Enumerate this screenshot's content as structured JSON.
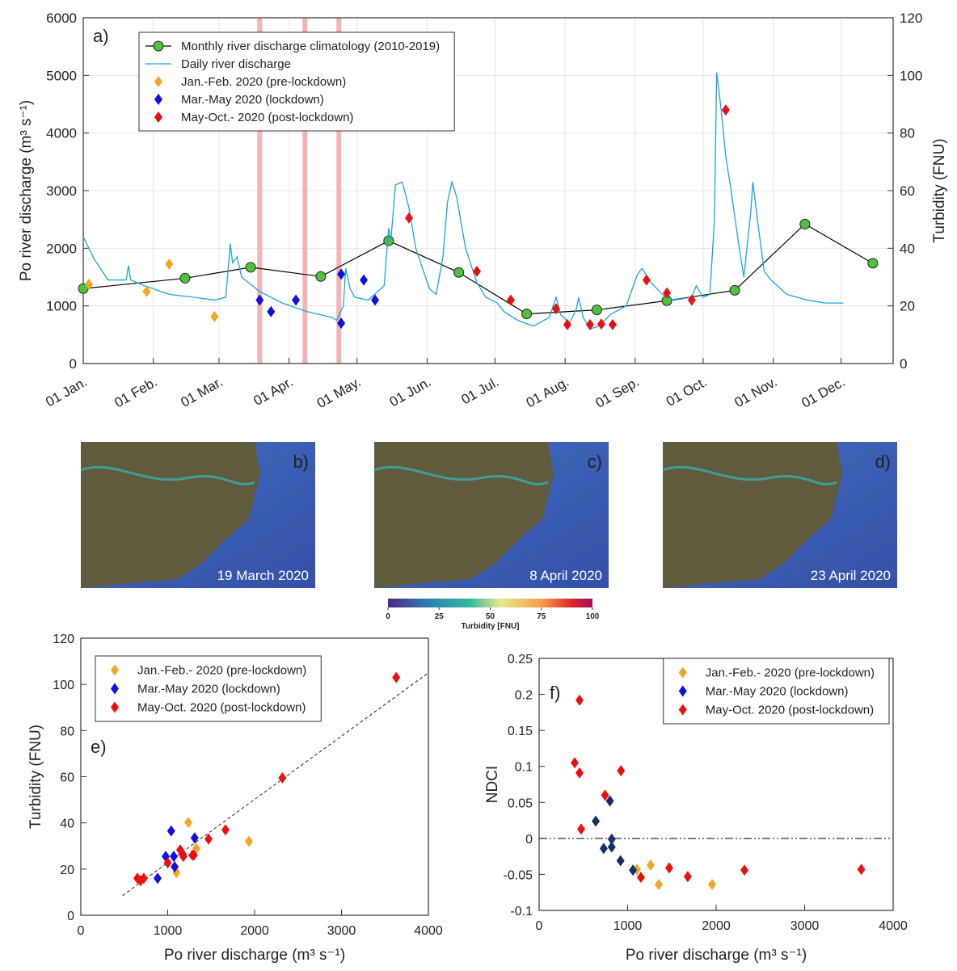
{
  "chart_data": [
    {
      "type": "line",
      "panel_label": "a)",
      "y_label": "Po river discharge (m³ s⁻¹)",
      "y2_label": "Turbidity (FNU)",
      "xlim": [
        0,
        358
      ],
      "xticks": [
        {
          "value": 0,
          "label": "01 Jan."
        },
        {
          "value": 31,
          "label": "01 Feb."
        },
        {
          "value": 60,
          "label": "01 Mar."
        },
        {
          "value": 91,
          "label": "01 Apr."
        },
        {
          "value": 121,
          "label": "01 May."
        },
        {
          "value": 152,
          "label": "01 Jun."
        },
        {
          "value": 182,
          "label": "01 Jul."
        },
        {
          "value": 213,
          "label": "01 Aug."
        },
        {
          "value": 244,
          "label": "01 Sep."
        },
        {
          "value": 274,
          "label": "01 Oct."
        },
        {
          "value": 305,
          "label": "01 Nov."
        },
        {
          "value": 335,
          "label": "01 Dec."
        }
      ],
      "ylim": [
        0,
        6000
      ],
      "yticks": [
        0,
        1000,
        2000,
        3000,
        4000,
        5000,
        6000
      ],
      "y2lim": [
        0,
        120
      ],
      "y2ticks": [
        0,
        20,
        40,
        60,
        80,
        100,
        120
      ],
      "grid": true,
      "legend": "upper left",
      "highlights": [
        78,
        98,
        113
      ],
      "series": [
        {
          "name": "Monthly river discharge climatology (2010-2019)",
          "style": "line-marker",
          "color": "#000000",
          "marker_color": "#4cc33b",
          "x": [
            0,
            45,
            74,
            105,
            135,
            166,
            196,
            227,
            258,
            288,
            319,
            349
          ],
          "values": [
            1300,
            1480,
            1670,
            1510,
            2130,
            1580,
            860,
            930,
            1090,
            1270,
            2420,
            1740
          ]
        },
        {
          "name": "Daily river discharge",
          "style": "line",
          "color": "#1aa3e0",
          "x": [
            0,
            5,
            11,
            19,
            20,
            21,
            27,
            38,
            49,
            58,
            63,
            65,
            66,
            68,
            70,
            78,
            88,
            99,
            110,
            112,
            115,
            116,
            118,
            120,
            126,
            133,
            135,
            136,
            138,
            141,
            144,
            147,
            153,
            156,
            159,
            161,
            163,
            165,
            169,
            174,
            178,
            183,
            186,
            192,
            199,
            206,
            209,
            211,
            215,
            218,
            219,
            221,
            224,
            228,
            233,
            240,
            245,
            247,
            251,
            256,
            261,
            269,
            271,
            274,
            277,
            279,
            280,
            282,
            284,
            286,
            290,
            292,
            295,
            296,
            298,
            301,
            304,
            311,
            320,
            328,
            336
          ],
          "values": [
            2200,
            1800,
            1450,
            1450,
            1700,
            1450,
            1350,
            1200,
            1150,
            1100,
            1150,
            2080,
            1750,
            1850,
            1500,
            1250,
            1050,
            900,
            800,
            750,
            1000,
            1650,
            1300,
            1150,
            1100,
            1350,
            2350,
            2150,
            3100,
            3150,
            2700,
            2000,
            1300,
            1200,
            1850,
            2800,
            3150,
            2900,
            2000,
            1400,
            1150,
            1050,
            900,
            750,
            650,
            800,
            1150,
            850,
            700,
            950,
            1150,
            800,
            600,
            650,
            850,
            1000,
            1550,
            1650,
            1400,
            1200,
            1100,
            1150,
            1350,
            1150,
            1200,
            2500,
            5050,
            4400,
            3600,
            3100,
            2000,
            1500,
            2600,
            3150,
            2500,
            1600,
            1450,
            1200,
            1100,
            1050,
            1050
          ]
        },
        {
          "name": "Jan.-Feb. 2020 (pre-lockdown)",
          "style": "diamond",
          "axis": "y2",
          "color": "#f0a820",
          "x": [
            2.5,
            28,
            38,
            58
          ],
          "values": [
            27.5,
            25,
            34.5,
            16.3
          ]
        },
        {
          "name": "Mar.-May 2020 (lockdown)",
          "style": "diamond",
          "axis": "y2",
          "color": "#1010e0",
          "x": [
            78,
            83,
            94,
            114,
            114,
            124,
            129
          ],
          "values": [
            22,
            18,
            22,
            31,
            14,
            29,
            22
          ]
        },
        {
          "name": "May-Oct.- 2020 (post-lockdown)",
          "style": "diamond",
          "axis": "y2",
          "color": "#e81010",
          "x": [
            144,
            174,
            189,
            209,
            214,
            224,
            229,
            234,
            249,
            258,
            269,
            284
          ],
          "values": [
            50.5,
            32,
            22,
            19,
            13.5,
            13.5,
            13.7,
            13.5,
            29,
            24.5,
            22,
            88
          ]
        }
      ]
    },
    {
      "type": "scatter",
      "panel_label": "e)",
      "x_label": "Po river discharge (m³ s⁻¹)",
      "y_label": "Turbidity (FNU)",
      "xlim": [
        0,
        4000
      ],
      "xticks": [
        0,
        1000,
        2000,
        3000,
        4000
      ],
      "ylim": [
        0,
        120
      ],
      "yticks": [
        0,
        20,
        40,
        60,
        80,
        100,
        120
      ],
      "grid": false,
      "legend": "upper left",
      "fit_line": {
        "x": [
          480,
          4000
        ],
        "values": [
          8.5,
          105
        ]
      },
      "series": [
        {
          "name": "Jan.-Feb.- 2020 (pre-lockdown)",
          "color": "#f0a820",
          "x": [
            1237,
            1935,
            1330,
            1100
          ],
          "values": [
            40.2,
            32,
            29,
            18.5
          ]
        },
        {
          "name": "Mar.-May 2020 (lockdown)",
          "color": "#1010e0",
          "x": [
            1040,
            1310,
            977,
            1070,
            1080,
            884
          ],
          "values": [
            36.5,
            33.5,
            25.5,
            25.5,
            21,
            16
          ]
        },
        {
          "name": "May-Oct. 2020 (post-lockdown)",
          "color": "#e81010",
          "x": [
            3630,
            2320,
            1665,
            1470,
            1300,
            1180,
            1172,
            1144,
            1284,
            1000,
            651,
            725,
            688
          ],
          "values": [
            103,
            59.5,
            37,
            33,
            26,
            25.5,
            26.5,
            28.3,
            26,
            22.7,
            16,
            16,
            15
          ]
        }
      ]
    },
    {
      "type": "scatter",
      "panel_label": "f)",
      "x_label": "Po river discharge (m³ s⁻¹)",
      "y_label": "NDCI",
      "xlim": [
        0,
        4000
      ],
      "xticks": [
        0,
        1000,
        2000,
        3000,
        4000
      ],
      "ylim": [
        -0.1,
        0.25
      ],
      "yticks": [
        -0.1,
        -0.05,
        0,
        0.05,
        0.1,
        0.15,
        0.2,
        0.25
      ],
      "grid": false,
      "legend": "upper right",
      "hline": 0,
      "series": [
        {
          "name": "Jan.-Feb.- 2020 (pre-lockdown)",
          "color": "#f0a820",
          "x": [
            1105,
            1260,
            1352,
            1954
          ],
          "values": [
            -0.043,
            -0.037,
            -0.064,
            -0.064
          ]
        },
        {
          "name": "Mar.-May 2020 (lockdown)",
          "color": "#1010e0",
          "marker_color": "#14306a",
          "x": [
            640,
            800,
            730,
            820,
            820,
            920,
            1060
          ],
          "values": [
            0.024,
            0.052,
            -0.014,
            -0.012,
            -0.001,
            -0.031,
            -0.044
          ]
        },
        {
          "name": "May-Oct. 2020 (post-lockdown)",
          "color": "#e81010",
          "x": [
            402,
            457,
            457,
            475,
            745,
            925,
            1150,
            1470,
            1680,
            2320,
            3640
          ],
          "values": [
            0.105,
            0.192,
            0.091,
            0.013,
            0.06,
            0.094,
            -0.054,
            -0.041,
            -0.053,
            -0.044,
            -0.043
          ]
        }
      ]
    }
  ],
  "images": [
    {
      "label": "b)",
      "caption": "19 March 2020"
    },
    {
      "label": "c)",
      "caption": "8 April 2020"
    },
    {
      "label": "d)",
      "caption": "23 April 2020"
    }
  ],
  "colorbar": {
    "lim": [
      0,
      100
    ],
    "ticks": [
      0,
      25,
      50,
      75,
      100
    ],
    "label": "Turbidity [FNU]"
  }
}
